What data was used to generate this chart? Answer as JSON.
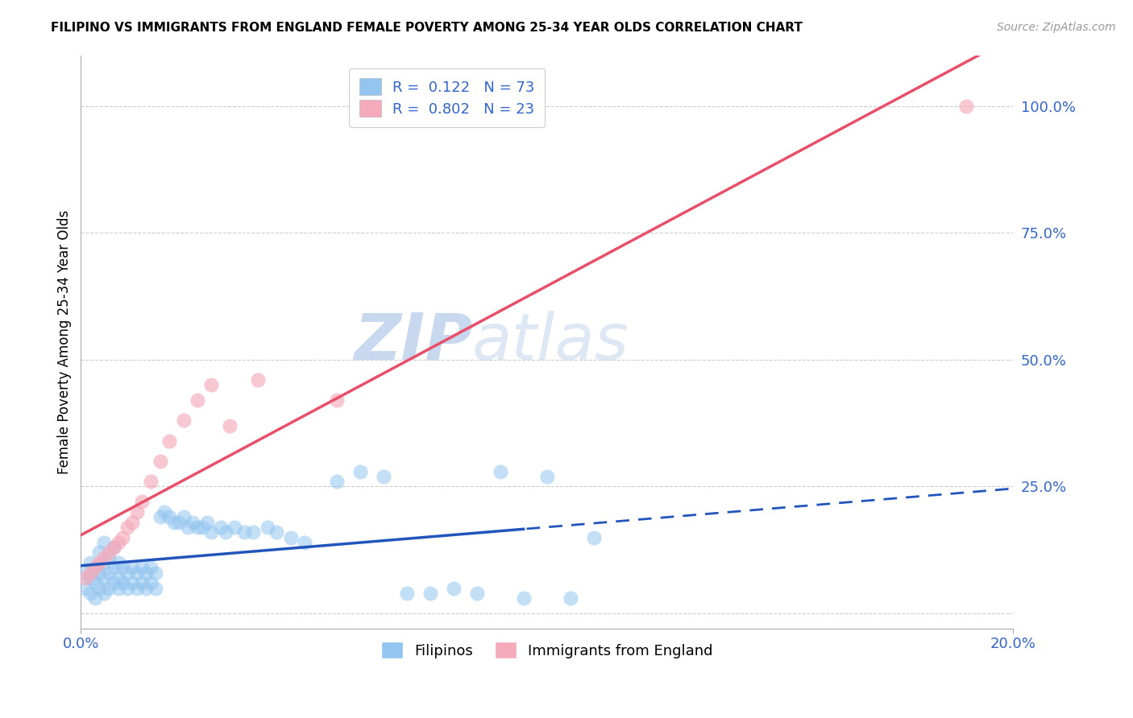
{
  "title": "FILIPINO VS IMMIGRANTS FROM ENGLAND FEMALE POVERTY AMONG 25-34 YEAR OLDS CORRELATION CHART",
  "source": "Source: ZipAtlas.com",
  "ylabel": "Female Poverty Among 25-34 Year Olds",
  "legend_label1": "Filipinos",
  "legend_label2": "Immigrants from England",
  "R1": "0.122",
  "N1": "73",
  "R2": "0.802",
  "N2": "23",
  "color_blue": "#92C5F0",
  "color_pink": "#F4AABB",
  "color_blue_line": "#2255BB",
  "color_pink_line": "#E8506A",
  "color_blue_text": "#3366CC",
  "watermark_color": "#D5E5F5",
  "filipinos_x": [
    0.001,
    0.001,
    0.002,
    0.002,
    0.002,
    0.003,
    0.003,
    0.003,
    0.004,
    0.004,
    0.004,
    0.005,
    0.005,
    0.005,
    0.005,
    0.006,
    0.006,
    0.006,
    0.007,
    0.007,
    0.007,
    0.008,
    0.008,
    0.008,
    0.009,
    0.009,
    0.01,
    0.01,
    0.011,
    0.011,
    0.012,
    0.012,
    0.013,
    0.013,
    0.014,
    0.014,
    0.015,
    0.015,
    0.016,
    0.016,
    0.017,
    0.018,
    0.019,
    0.02,
    0.021,
    0.022,
    0.023,
    0.024,
    0.025,
    0.026,
    0.027,
    0.028,
    0.03,
    0.031,
    0.033,
    0.035,
    0.037,
    0.04,
    0.042,
    0.045,
    0.048,
    0.055,
    0.06,
    0.065,
    0.07,
    0.075,
    0.08,
    0.085,
    0.09,
    0.095,
    0.1,
    0.105,
    0.11
  ],
  "filipinos_y": [
    0.05,
    0.08,
    0.04,
    0.07,
    0.1,
    0.03,
    0.06,
    0.09,
    0.05,
    0.08,
    0.12,
    0.04,
    0.07,
    0.1,
    0.14,
    0.05,
    0.08,
    0.11,
    0.06,
    0.09,
    0.13,
    0.05,
    0.07,
    0.1,
    0.06,
    0.09,
    0.05,
    0.08,
    0.06,
    0.09,
    0.05,
    0.08,
    0.06,
    0.09,
    0.05,
    0.08,
    0.06,
    0.09,
    0.05,
    0.08,
    0.19,
    0.2,
    0.19,
    0.18,
    0.18,
    0.19,
    0.17,
    0.18,
    0.17,
    0.17,
    0.18,
    0.16,
    0.17,
    0.16,
    0.17,
    0.16,
    0.16,
    0.17,
    0.16,
    0.15,
    0.14,
    0.26,
    0.28,
    0.27,
    0.04,
    0.04,
    0.05,
    0.04,
    0.28,
    0.03,
    0.27,
    0.03,
    0.15
  ],
  "england_x": [
    0.001,
    0.002,
    0.003,
    0.004,
    0.005,
    0.006,
    0.007,
    0.008,
    0.009,
    0.01,
    0.011,
    0.012,
    0.013,
    0.015,
    0.017,
    0.019,
    0.022,
    0.025,
    0.028,
    0.032,
    0.038,
    0.055,
    0.19
  ],
  "england_y": [
    0.07,
    0.08,
    0.09,
    0.1,
    0.11,
    0.12,
    0.13,
    0.14,
    0.15,
    0.17,
    0.18,
    0.2,
    0.22,
    0.26,
    0.3,
    0.34,
    0.38,
    0.42,
    0.45,
    0.37,
    0.46,
    0.42,
    1.0
  ],
  "xmin": 0.0,
  "xmax": 0.2,
  "ymin": -0.03,
  "ymax": 1.1,
  "trend_split_x": 0.095
}
